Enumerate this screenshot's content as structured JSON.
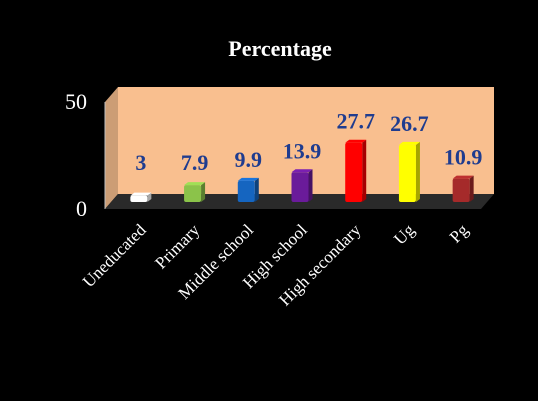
{
  "chart_data": {
    "type": "bar",
    "title": "Percentage",
    "categories": [
      "Uneducated",
      "Primary",
      "Middle school",
      "High school",
      "High secondary",
      "Ug",
      "Pg"
    ],
    "values": [
      3,
      7.9,
      9.9,
      13.9,
      27.7,
      26.7,
      10.9
    ],
    "value_labels": [
      "3",
      "7.9",
      "9.9",
      "13.9",
      "27.7",
      "26.7",
      "10.9"
    ],
    "bar_colors": [
      "#ffffff",
      "#8bc34a",
      "#1565c0",
      "#6a1b9a",
      "#ff0000",
      "#ffff00",
      "#a52a2a"
    ],
    "y_ticks": [
      "0",
      "50"
    ],
    "ylim": [
      0,
      50
    ],
    "grid": false,
    "legend": "none",
    "style": {
      "background": "#000000",
      "plot_wall": "#f9bf8f",
      "floor": "#2a2a2a",
      "text_color": "#ffffff",
      "value_label_color": "#1f3c8f",
      "axis_color": "#c0c0c0"
    }
  }
}
